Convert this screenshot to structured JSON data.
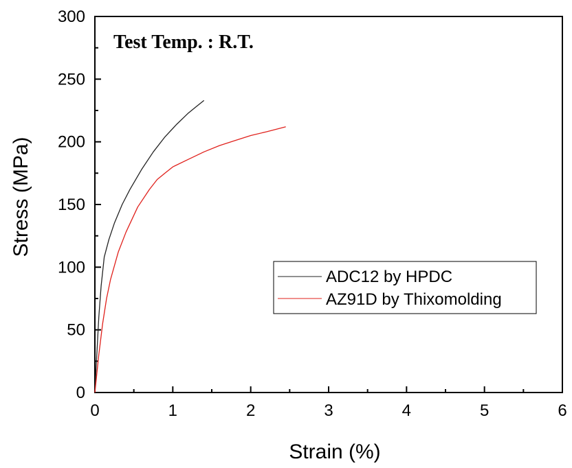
{
  "chart_data": {
    "type": "line",
    "title": "",
    "annotation": "Test Temp. : R.T.",
    "xlabel": "Strain (%)",
    "ylabel": "Stress (MPa)",
    "xlim": [
      0,
      6
    ],
    "ylim": [
      0,
      300
    ],
    "xticks": [
      0,
      1,
      2,
      3,
      4,
      5,
      6
    ],
    "yticks": [
      0,
      50,
      100,
      150,
      200,
      250,
      300
    ],
    "grid": false,
    "legend_position": "right",
    "series": [
      {
        "name": "ADC12 by HPDC",
        "color": "#222222",
        "x": [
          0,
          0.02,
          0.05,
          0.08,
          0.12,
          0.18,
          0.25,
          0.35,
          0.45,
          0.6,
          0.75,
          0.9,
          1.05,
          1.2,
          1.3,
          1.4
        ],
        "y": [
          0,
          25,
          60,
          85,
          108,
          122,
          135,
          150,
          162,
          178,
          192,
          204,
          214,
          223,
          228,
          233
        ]
      },
      {
        "name": "AZ91D by Thixomolding",
        "color": "#e0201b",
        "x": [
          0,
          0.05,
          0.1,
          0.15,
          0.2,
          0.3,
          0.4,
          0.55,
          0.7,
          0.8,
          0.9,
          1.0,
          1.2,
          1.4,
          1.6,
          1.8,
          2.0,
          2.2,
          2.45
        ],
        "y": [
          0,
          30,
          55,
          75,
          90,
          112,
          128,
          148,
          162,
          170,
          175,
          180,
          186,
          192,
          197,
          201,
          205,
          208,
          212
        ]
      }
    ]
  }
}
